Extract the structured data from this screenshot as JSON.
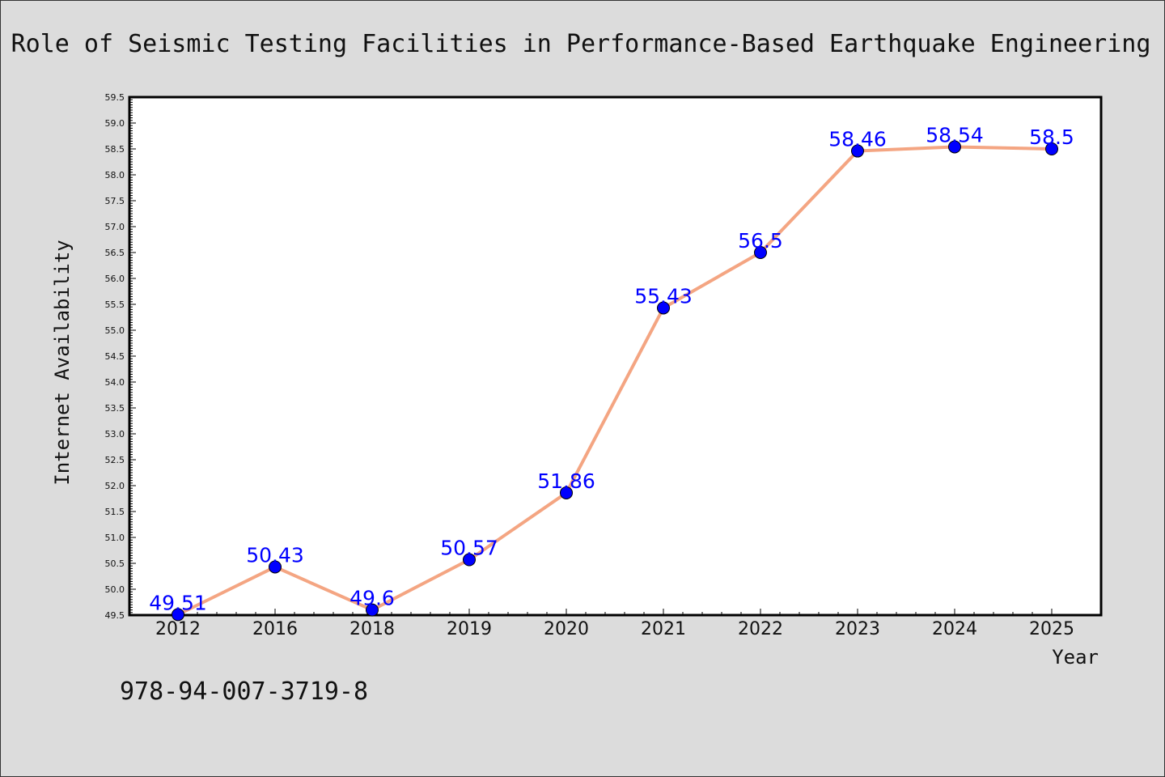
{
  "chart_data": {
    "type": "line",
    "title": "Role of Seismic Testing Facilities in Performance-Based Earthquake Engineering",
    "xlabel": "Year",
    "ylabel": "Internet Availability",
    "categories": [
      "2012",
      "2016",
      "2018",
      "2019",
      "2020",
      "2021",
      "2022",
      "2023",
      "2024",
      "2025"
    ],
    "values": [
      49.51,
      50.43,
      49.6,
      50.57,
      51.86,
      55.43,
      56.5,
      58.46,
      58.54,
      58.5
    ],
    "data_labels": [
      "49.51",
      "50.43",
      "49.6",
      "50.57",
      "51.86",
      "55.43",
      "56.5",
      "58.46",
      "58.54",
      "58.5"
    ],
    "ylim": [
      49.5,
      59.5
    ],
    "yticks": [
      "49.5",
      "50.0",
      "50.5",
      "51.0",
      "51.5",
      "52.0",
      "52.5",
      "53.0",
      "53.5",
      "54.0",
      "54.5",
      "55.0",
      "55.5",
      "56.0",
      "56.5",
      "57.0",
      "57.5",
      "58.0",
      "58.5",
      "59.0",
      "59.5"
    ],
    "grid": false,
    "line_color": "#f4a582",
    "marker_color": "#0000ff",
    "label_color": "#0000ff"
  },
  "annotation": "978-94-007-3719-8"
}
